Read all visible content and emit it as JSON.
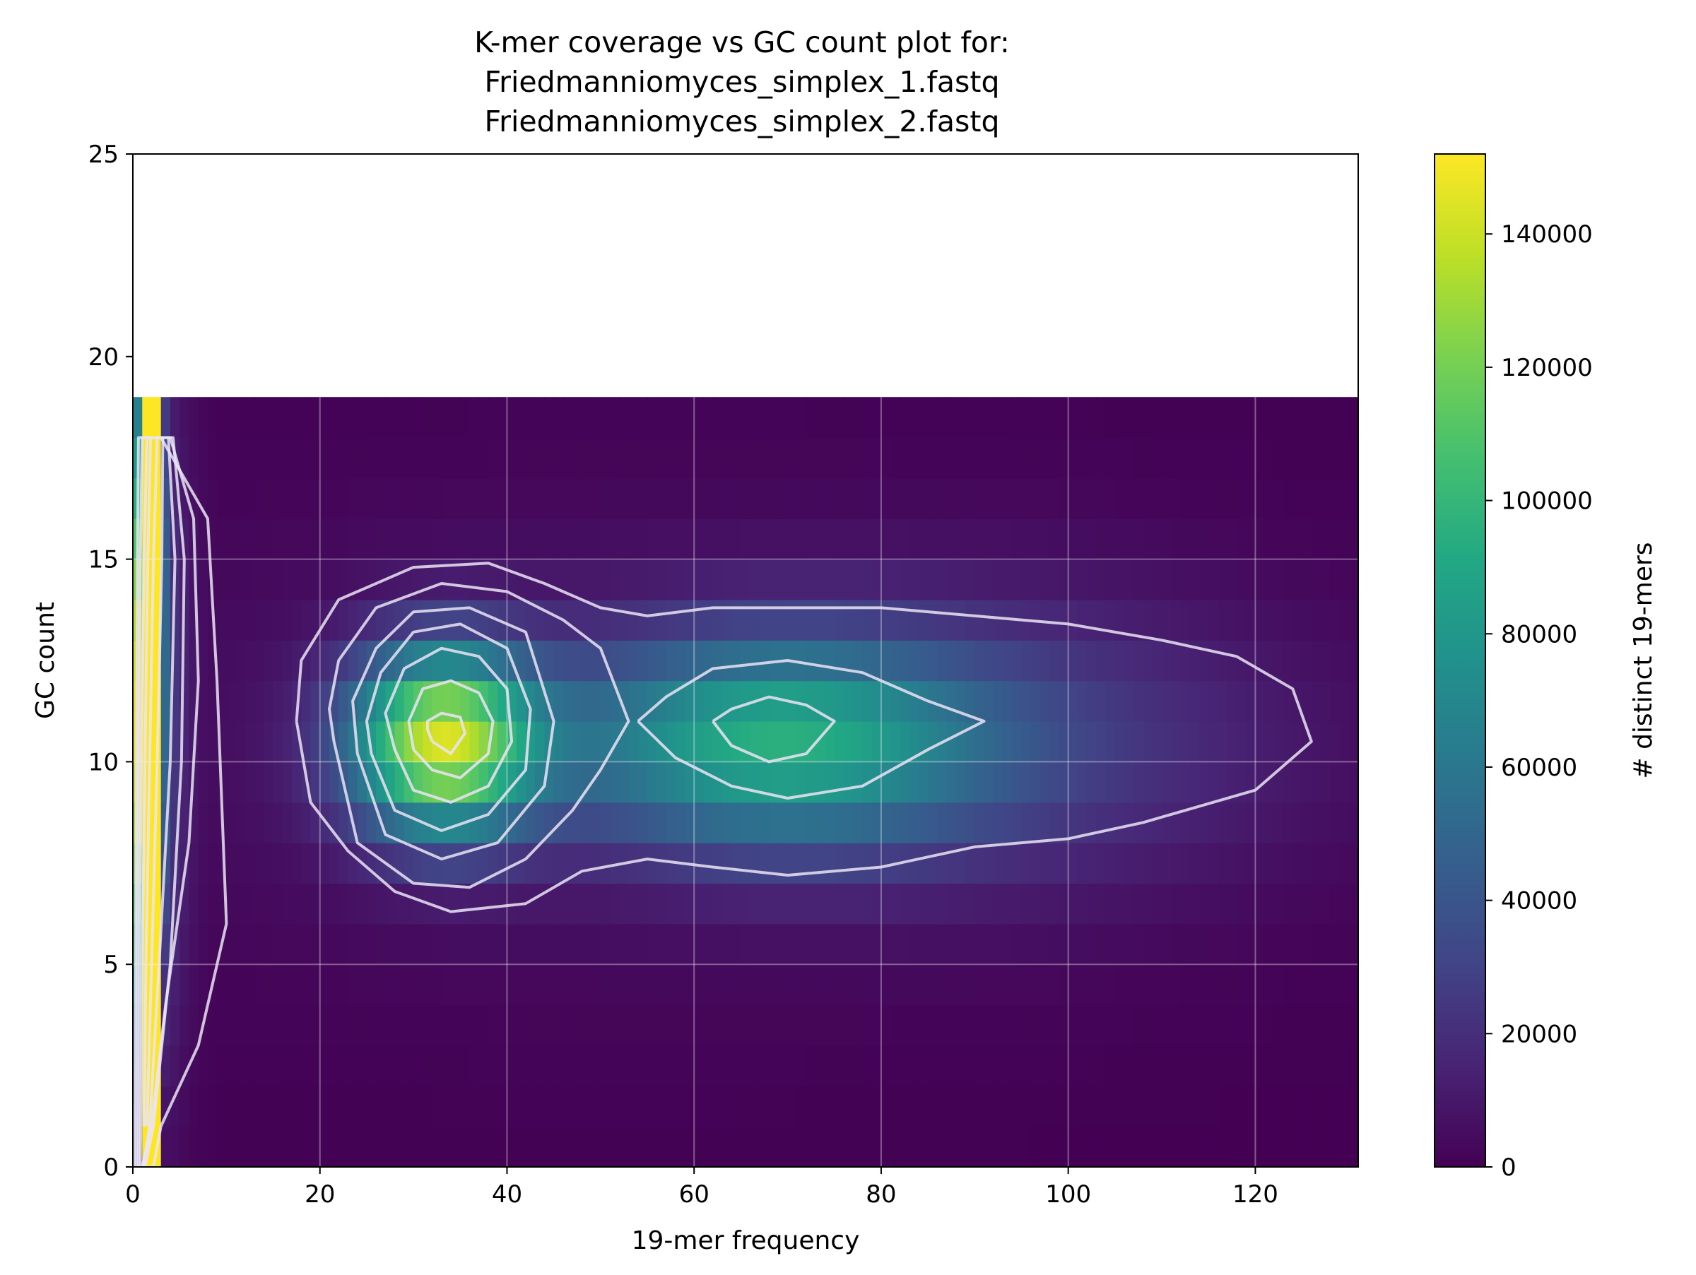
{
  "chart_data": {
    "type": "heatmap",
    "title": [
      "K-mer coverage vs GC count plot for:",
      "Friedmanniomyces_simplex_1.fastq",
      "Friedmanniomyces_simplex_2.fastq"
    ],
    "xlabel": "19-mer frequency",
    "ylabel": "GC count",
    "colorbar_label": "# distinct 19-mers",
    "colormap": "viridis",
    "xlim": [
      0,
      131
    ],
    "ylim": [
      0,
      25
    ],
    "clim": [
      0,
      152000
    ],
    "xticks": [
      0,
      20,
      40,
      60,
      80,
      100,
      120
    ],
    "yticks": [
      0,
      5,
      10,
      15,
      20,
      25
    ],
    "colorbar_ticks": [
      0,
      20000,
      40000,
      60000,
      80000,
      100000,
      120000,
      140000
    ],
    "grid": true,
    "gc_bins": [
      0,
      1,
      2,
      3,
      4,
      5,
      6,
      7,
      8,
      9,
      10,
      11,
      12,
      13,
      14,
      15,
      16,
      17,
      18
    ],
    "peaks": [
      {
        "frequency": 33,
        "gc_count": 10.5,
        "distinct_kmers": 128000
      },
      {
        "frequency": 68,
        "gc_count": 10.5,
        "distinct_kmers": 78000
      }
    ],
    "low_frequency_column": {
      "frequency": [
        1,
        3
      ],
      "gc_count": [
        0,
        19
      ],
      "distinct_kmers": 152000
    },
    "contours": [
      [
        [
          1.2,
          1
        ],
        [
          1.4,
          5
        ],
        [
          1.8,
          10
        ],
        [
          2.2,
          15
        ],
        [
          2.6,
          18
        ],
        [
          3.2,
          18
        ],
        [
          3.1,
          15
        ],
        [
          2.6,
          10
        ],
        [
          2.0,
          5
        ],
        [
          1.5,
          1
        ]
      ],
      [
        [
          0.8,
          0
        ],
        [
          1.0,
          5
        ],
        [
          1.3,
          10
        ],
        [
          1.6,
          15
        ],
        [
          1.9,
          18
        ],
        [
          3.8,
          18
        ],
        [
          4.5,
          15
        ],
        [
          4.0,
          10
        ],
        [
          2.8,
          5
        ],
        [
          1.8,
          1
        ],
        [
          1.1,
          0
        ]
      ],
      [
        [
          0.6,
          0
        ],
        [
          0.7,
          5
        ],
        [
          0.9,
          10
        ],
        [
          1.2,
          15
        ],
        [
          1.5,
          18
        ],
        [
          4.3,
          18
        ],
        [
          5.5,
          15
        ],
        [
          5.2,
          10
        ],
        [
          4.0,
          5
        ],
        [
          2.2,
          1
        ],
        [
          1.3,
          0
        ]
      ],
      [
        [
          0.4,
          0
        ],
        [
          0.5,
          5
        ],
        [
          0.6,
          10
        ],
        [
          0.8,
          15
        ],
        [
          1.0,
          18
        ],
        [
          4.0,
          18
        ],
        [
          6.5,
          16
        ],
        [
          7.0,
          12
        ],
        [
          6.0,
          8
        ],
        [
          3.5,
          4
        ],
        [
          2.0,
          1
        ],
        [
          1.0,
          0
        ]
      ],
      [
        [
          0.2,
          0
        ],
        [
          0.3,
          5
        ],
        [
          0.4,
          10
        ],
        [
          0.5,
          15
        ],
        [
          0.6,
          18
        ],
        [
          3.0,
          18
        ],
        [
          8.0,
          16
        ],
        [
          9.0,
          12
        ],
        [
          10.0,
          6
        ],
        [
          7.0,
          3
        ],
        [
          3.0,
          1
        ],
        [
          2.2,
          0
        ],
        [
          0.5,
          0
        ]
      ],
      [
        [
          32,
          10.5
        ],
        [
          34,
          10.2
        ],
        [
          35.5,
          10.7
        ],
        [
          35,
          11.1
        ],
        [
          33,
          11.2
        ],
        [
          31.5,
          11
        ],
        [
          31.5,
          10.8
        ],
        [
          32,
          10.5
        ]
      ],
      [
        [
          30,
          10.3
        ],
        [
          32,
          9.8
        ],
        [
          35,
          9.6
        ],
        [
          38,
          10.2
        ],
        [
          38.5,
          11
        ],
        [
          37,
          11.7
        ],
        [
          34,
          12
        ],
        [
          31,
          11.8
        ],
        [
          29.5,
          11
        ],
        [
          30,
          10.3
        ]
      ],
      [
        [
          28,
          10.3
        ],
        [
          30,
          9.3
        ],
        [
          34,
          9
        ],
        [
          38,
          9.4
        ],
        [
          40.5,
          10.5
        ],
        [
          40,
          11.8
        ],
        [
          37,
          12.6
        ],
        [
          33,
          12.8
        ],
        [
          29,
          12.3
        ],
        [
          27,
          11.2
        ],
        [
          28,
          10.3
        ]
      ],
      [
        [
          25.5,
          10.2
        ],
        [
          28,
          8.8
        ],
        [
          33,
          8.3
        ],
        [
          38,
          8.7
        ],
        [
          42,
          9.8
        ],
        [
          42.5,
          11.3
        ],
        [
          40,
          12.8
        ],
        [
          35,
          13.4
        ],
        [
          30,
          13.2
        ],
        [
          26.5,
          12.2
        ],
        [
          25,
          11
        ],
        [
          25.5,
          10.2
        ]
      ],
      [
        [
          24,
          10.2
        ],
        [
          27,
          8.2
        ],
        [
          33,
          7.6
        ],
        [
          39,
          8
        ],
        [
          44,
          9.4
        ],
        [
          45,
          11
        ],
        [
          42,
          13.2
        ],
        [
          36,
          13.8
        ],
        [
          30,
          13.7
        ],
        [
          26,
          12.8
        ],
        [
          23.5,
          11.5
        ],
        [
          24,
          10.2
        ]
      ],
      [
        [
          21.5,
          10.5
        ],
        [
          24,
          8
        ],
        [
          30,
          7
        ],
        [
          36,
          6.9
        ],
        [
          42,
          7.6
        ],
        [
          47,
          8.8
        ],
        [
          50,
          9.8
        ],
        [
          53,
          11
        ],
        [
          50,
          12.8
        ],
        [
          46,
          13.5
        ],
        [
          40,
          14.2
        ],
        [
          33,
          14.4
        ],
        [
          26,
          13.8
        ],
        [
          22,
          12.5
        ],
        [
          21,
          11.3
        ],
        [
          21.5,
          10.5
        ]
      ],
      [
        [
          62,
          11
        ],
        [
          64,
          10.4
        ],
        [
          68,
          10
        ],
        [
          72,
          10.2
        ],
        [
          75,
          11
        ],
        [
          72,
          11.4
        ],
        [
          68,
          11.6
        ],
        [
          64,
          11.3
        ],
        [
          62,
          11
        ]
      ],
      [
        [
          54,
          11
        ],
        [
          58,
          10.1
        ],
        [
          64,
          9.4
        ],
        [
          70,
          9.1
        ],
        [
          78,
          9.4
        ],
        [
          85,
          10.3
        ],
        [
          91,
          11
        ],
        [
          85,
          11.5
        ],
        [
          78,
          12.2
        ],
        [
          70,
          12.5
        ],
        [
          62,
          12.3
        ],
        [
          57,
          11.6
        ],
        [
          54,
          11
        ]
      ],
      [
        [
          17.5,
          11
        ],
        [
          19,
          9
        ],
        [
          23,
          7.8
        ],
        [
          28,
          6.8
        ],
        [
          34,
          6.3
        ],
        [
          42,
          6.5
        ],
        [
          48,
          7.3
        ],
        [
          55,
          7.6
        ],
        [
          62,
          7.4
        ],
        [
          70,
          7.2
        ],
        [
          80,
          7.4
        ],
        [
          90,
          7.9
        ],
        [
          100,
          8.1
        ],
        [
          108,
          8.5
        ],
        [
          120,
          9.3
        ],
        [
          126,
          10.5
        ],
        [
          124,
          11.8
        ],
        [
          118,
          12.6
        ],
        [
          110,
          13
        ],
        [
          100,
          13.4
        ],
        [
          90,
          13.6
        ],
        [
          80,
          13.8
        ],
        [
          70,
          13.8
        ],
        [
          62,
          13.8
        ],
        [
          55,
          13.6
        ],
        [
          50,
          13.8
        ],
        [
          44,
          14.4
        ],
        [
          38,
          14.9
        ],
        [
          30,
          14.8
        ],
        [
          22,
          14
        ],
        [
          18,
          12.5
        ],
        [
          17.5,
          11
        ]
      ]
    ]
  }
}
